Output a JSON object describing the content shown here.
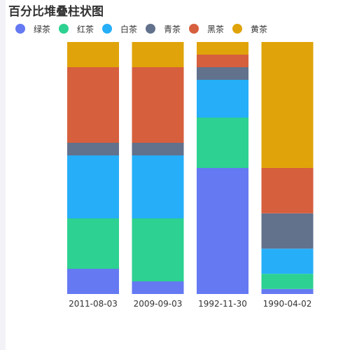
{
  "chart_data": {
    "type": "bar",
    "stacked": true,
    "percent": true,
    "title": "百分比堆叠柱状图",
    "categories": [
      "2011-08-03",
      "2009-09-03",
      "1992-11-30",
      "1990-04-02"
    ],
    "series": [
      {
        "name": "绿茶",
        "color": "#6479f2",
        "values": [
          10,
          5,
          50,
          2
        ]
      },
      {
        "name": "红茶",
        "color": "#2dd191",
        "values": [
          20,
          25,
          20,
          6
        ]
      },
      {
        "name": "白茶",
        "color": "#26aef8",
        "values": [
          25,
          25,
          15,
          10
        ]
      },
      {
        "name": "青茶",
        "color": "#62718c",
        "values": [
          5,
          5,
          5,
          14
        ]
      },
      {
        "name": "黑茶",
        "color": "#d65f3e",
        "values": [
          30,
          30,
          5,
          18
        ]
      },
      {
        "name": "黄茶",
        "color": "#e0a40a",
        "values": [
          10,
          10,
          5,
          50
        ]
      }
    ],
    "ylim": [
      0,
      100
    ],
    "grid": false,
    "legend_position": "top-left"
  }
}
